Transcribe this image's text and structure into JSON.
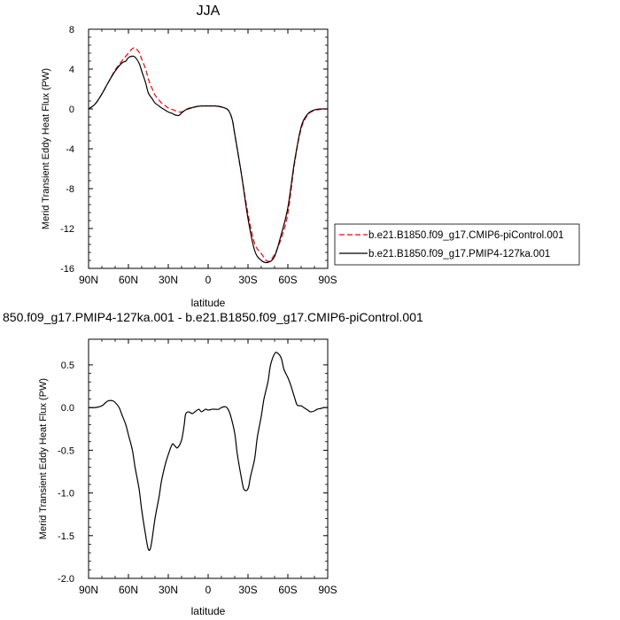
{
  "chart_data": [
    {
      "type": "line",
      "title": "JJA",
      "xlabel": "latitude",
      "ylabel": "Merid Transient Eddy Heat Flux (PW)",
      "xlim": [
        90,
        -90
      ],
      "ylim": [
        -16,
        8
      ],
      "x_ticks": [
        {
          "value": 90,
          "label": "90N"
        },
        {
          "value": 60,
          "label": "60N"
        },
        {
          "value": 30,
          "label": "30N"
        },
        {
          "value": 0,
          "label": "0"
        },
        {
          "value": -30,
          "label": "30S"
        },
        {
          "value": -60,
          "label": "60S"
        },
        {
          "value": -90,
          "label": "90S"
        }
      ],
      "y_ticks": [
        8,
        4,
        0,
        -4,
        -8,
        -12,
        -16
      ],
      "y_tick_labels": [
        "8",
        "4",
        "0",
        "-4",
        "-8",
        "-12",
        "-16"
      ],
      "legend": "outside-right",
      "series": [
        {
          "name": "b.e21.B1850.f09_g17.CMIP6-piControl.001",
          "color": "#ff0000",
          "dash": "dashed",
          "x": [
            90,
            85,
            80,
            75,
            70,
            65,
            60,
            57,
            55,
            52,
            50,
            47,
            45,
            42,
            40,
            37,
            35,
            32,
            30,
            27,
            25,
            22,
            20,
            17,
            15,
            10,
            5,
            0,
            -5,
            -10,
            -15,
            -18,
            -20,
            -25,
            -30,
            -35,
            -40,
            -45,
            -50,
            -55,
            -60,
            -65,
            -70,
            -75,
            -80,
            -85,
            -90
          ],
          "y": [
            0.0,
            0.5,
            1.5,
            2.7,
            3.9,
            4.8,
            5.6,
            6.05,
            6.1,
            5.7,
            5.0,
            4.0,
            3.0,
            2.0,
            1.4,
            0.9,
            0.6,
            0.3,
            0.1,
            -0.05,
            -0.15,
            -0.3,
            -0.3,
            -0.1,
            0.05,
            0.2,
            0.3,
            0.3,
            0.3,
            0.2,
            -0.1,
            -1.0,
            -2.5,
            -6.5,
            -10.5,
            -13.5,
            -14.5,
            -15.3,
            -14.6,
            -13.0,
            -10.5,
            -5.5,
            -2.0,
            -0.6,
            -0.15,
            -0.05,
            0.0
          ]
        },
        {
          "name": "b.e21.B1850.f09_g17.PMIP4-127ka.001",
          "color": "#000000",
          "dash": "solid",
          "x": [
            90,
            85,
            80,
            75,
            70,
            65,
            62,
            60,
            57,
            55,
            52,
            50,
            47,
            45,
            42,
            40,
            37,
            35,
            30,
            27,
            25,
            22,
            20,
            17,
            15,
            10,
            5,
            0,
            -5,
            -10,
            -15,
            -18,
            -20,
            -25,
            -30,
            -35,
            -40,
            -45,
            -50,
            -55,
            -60,
            -65,
            -70,
            -75,
            -80,
            -85,
            -90
          ],
          "y": [
            0.0,
            0.5,
            1.5,
            2.7,
            3.8,
            4.6,
            4.8,
            5.15,
            5.3,
            5.2,
            4.6,
            3.8,
            2.6,
            1.6,
            1.0,
            0.6,
            0.3,
            0.1,
            -0.3,
            -0.45,
            -0.6,
            -0.65,
            -0.4,
            -0.1,
            0.0,
            0.2,
            0.3,
            0.3,
            0.3,
            0.2,
            -0.1,
            -1.0,
            -2.5,
            -6.5,
            -11.0,
            -14.2,
            -15.2,
            -15.4,
            -14.8,
            -12.6,
            -9.9,
            -5.3,
            -1.8,
            -0.5,
            -0.1,
            0.0,
            0.0
          ]
        }
      ]
    },
    {
      "type": "line",
      "title": "850.f09_g17.PMIP4-127ka.001 - b.e21.B1850.f09_g17.CMIP6-piControl.001",
      "xlabel": "latitude",
      "ylabel": "Merid Transient Eddy Heat Flux (PW)",
      "xlim": [
        90,
        -90
      ],
      "ylim": [
        -2.0,
        0.8
      ],
      "x_ticks": [
        {
          "value": 90,
          "label": "90N"
        },
        {
          "value": 60,
          "label": "60N"
        },
        {
          "value": 30,
          "label": "30N"
        },
        {
          "value": 0,
          "label": "0"
        },
        {
          "value": -30,
          "label": "30S"
        },
        {
          "value": -60,
          "label": "60S"
        },
        {
          "value": -90,
          "label": "90S"
        }
      ],
      "y_ticks": [
        0.5,
        0.0,
        -0.5,
        -1.0,
        -1.5,
        -2.0
      ],
      "y_tick_labels": [
        "0.5",
        "0.0",
        "-0.5",
        "-1.0",
        "-1.5",
        "-2.0"
      ],
      "series": [
        {
          "color": "#000000",
          "dash": "solid",
          "x": [
            90,
            85,
            80,
            77,
            75,
            72,
            70,
            67,
            65,
            62,
            60,
            57,
            55,
            52,
            50,
            47,
            45,
            43,
            40,
            37,
            35,
            32,
            30,
            27,
            25,
            23,
            20,
            18,
            17,
            15,
            12,
            10,
            7,
            5,
            2,
            0,
            -3,
            -5,
            -8,
            -10,
            -13,
            -15,
            -17,
            -20,
            -22,
            -25,
            -27,
            -30,
            -32,
            -35,
            -37,
            -40,
            -42,
            -45,
            -47,
            -50,
            -52,
            -55,
            -57,
            -60,
            -62,
            -65,
            -67,
            -70,
            -72,
            -75,
            -77,
            -80,
            -82,
            -85,
            -87,
            -90
          ],
          "y": [
            0.0,
            0.0,
            0.02,
            0.06,
            0.08,
            0.08,
            0.06,
            0.0,
            -0.08,
            -0.2,
            -0.32,
            -0.5,
            -0.7,
            -0.95,
            -1.2,
            -1.5,
            -1.66,
            -1.62,
            -1.3,
            -1.05,
            -0.85,
            -0.65,
            -0.55,
            -0.43,
            -0.45,
            -0.47,
            -0.38,
            -0.2,
            -0.08,
            -0.05,
            -0.07,
            -0.05,
            -0.02,
            -0.05,
            -0.02,
            -0.03,
            -0.02,
            -0.02,
            -0.02,
            0.0,
            0.01,
            -0.02,
            -0.1,
            -0.3,
            -0.55,
            -0.82,
            -0.96,
            -0.95,
            -0.8,
            -0.6,
            -0.35,
            -0.1,
            0.1,
            0.3,
            0.5,
            0.63,
            0.64,
            0.58,
            0.45,
            0.35,
            0.27,
            0.12,
            0.03,
            0.02,
            0.0,
            -0.03,
            -0.05,
            -0.04,
            -0.02,
            -0.01,
            0.0,
            0.0
          ]
        }
      ]
    }
  ]
}
